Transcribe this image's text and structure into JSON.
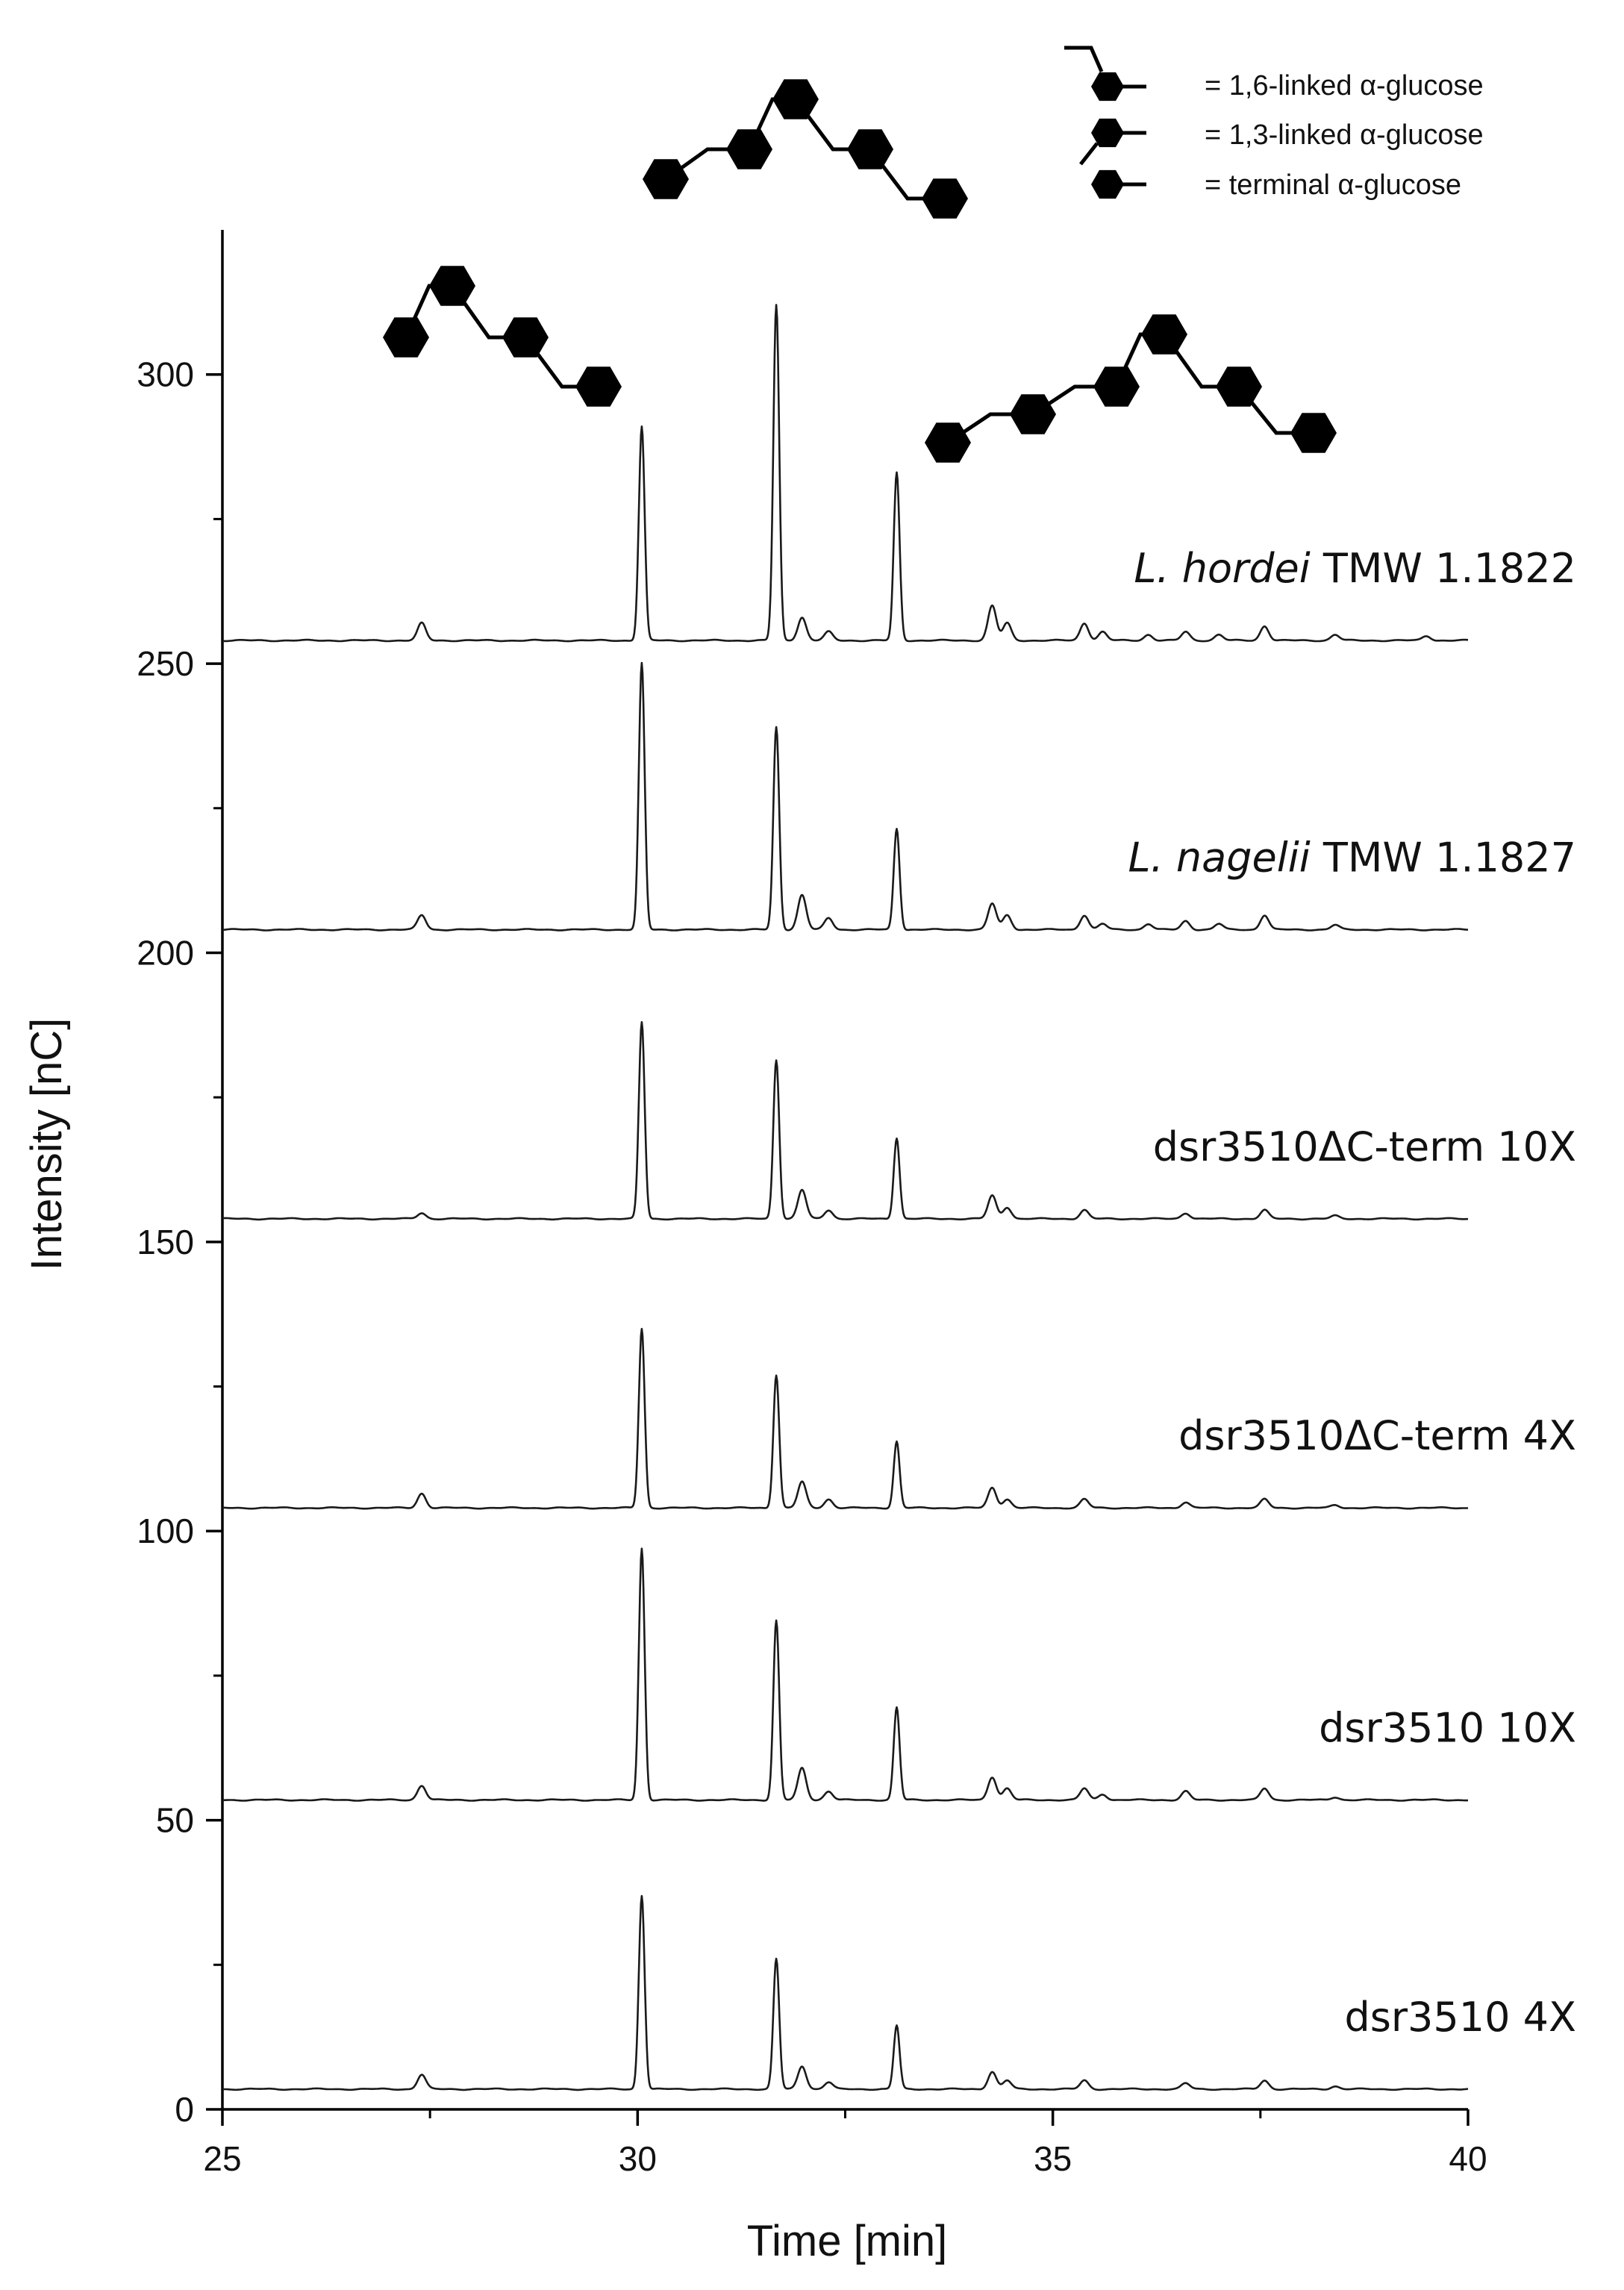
{
  "chart_data": {
    "type": "line",
    "xlabel": "Time [min]",
    "ylabel": "Intensity [nC]",
    "xlim": [
      25,
      40
    ],
    "ylim": [
      0,
      325
    ],
    "xticks": [
      25,
      30,
      35,
      40
    ],
    "yticks": [
      0,
      50,
      100,
      150,
      200,
      250,
      300
    ],
    "grid": false,
    "series": [
      {
        "name_parts": [
          {
            "text": "L. hordei",
            "italic": true
          },
          {
            "text": " TMW 1.1822",
            "italic": false
          }
        ],
        "baseline": 254,
        "peaks": [
          [
            27.4,
            3
          ],
          [
            30.05,
            37
          ],
          [
            31.67,
            58
          ],
          [
            31.98,
            4
          ],
          [
            32.3,
            1.5
          ],
          [
            33.12,
            29
          ],
          [
            34.27,
            6
          ],
          [
            34.45,
            3
          ],
          [
            35.38,
            3
          ],
          [
            35.6,
            1.5
          ],
          [
            36.15,
            1
          ],
          [
            36.6,
            1.5
          ],
          [
            37.0,
            1
          ],
          [
            37.55,
            2.5
          ],
          [
            38.4,
            1
          ],
          [
            39.5,
            0.8
          ]
        ]
      },
      {
        "name_parts": [
          {
            "text": "L. nagelii",
            "italic": true
          },
          {
            "text": " TMW 1.1827",
            "italic": false
          }
        ],
        "baseline": 204,
        "peaks": [
          [
            27.4,
            2.5
          ],
          [
            30.05,
            46
          ],
          [
            31.67,
            35
          ],
          [
            31.98,
            6
          ],
          [
            32.3,
            2
          ],
          [
            33.12,
            17.5
          ],
          [
            34.27,
            4.5
          ],
          [
            34.45,
            2.5
          ],
          [
            35.38,
            2.5
          ],
          [
            35.6,
            1
          ],
          [
            36.15,
            1
          ],
          [
            36.6,
            1.5
          ],
          [
            37.0,
            1
          ],
          [
            37.55,
            2.5
          ],
          [
            38.4,
            0.8
          ]
        ]
      },
      {
        "name_parts": [
          {
            "text": "dsr3510ΔC-term 10X",
            "italic": false
          }
        ],
        "baseline": 154,
        "peaks": [
          [
            27.4,
            1
          ],
          [
            30.05,
            34
          ],
          [
            31.67,
            27.5
          ],
          [
            31.98,
            5
          ],
          [
            32.3,
            1.5
          ],
          [
            33.12,
            14
          ],
          [
            34.27,
            4
          ],
          [
            34.45,
            2
          ],
          [
            35.38,
            1.5
          ],
          [
            36.6,
            1
          ],
          [
            37.55,
            1.5
          ],
          [
            38.4,
            0.5
          ]
        ]
      },
      {
        "name_parts": [
          {
            "text": "dsr3510ΔC-term 4X",
            "italic": false
          }
        ],
        "baseline": 104,
        "peaks": [
          [
            27.4,
            2.5
          ],
          [
            30.05,
            31
          ],
          [
            31.67,
            23
          ],
          [
            31.98,
            4.5
          ],
          [
            32.3,
            1.5
          ],
          [
            33.12,
            11.5
          ],
          [
            34.27,
            3.5
          ],
          [
            34.45,
            1.5
          ],
          [
            35.38,
            1.5
          ],
          [
            36.6,
            1
          ],
          [
            37.55,
            1.5
          ],
          [
            38.4,
            0.5
          ]
        ]
      },
      {
        "name_parts": [
          {
            "text": "dsr3510 10X",
            "italic": false
          }
        ],
        "baseline": 53.5,
        "peaks": [
          [
            27.4,
            2.5
          ],
          [
            30.05,
            43.5
          ],
          [
            31.67,
            31
          ],
          [
            31.98,
            5.5
          ],
          [
            32.3,
            1.5
          ],
          [
            33.12,
            16
          ],
          [
            34.27,
            4
          ],
          [
            34.45,
            2
          ],
          [
            35.38,
            2
          ],
          [
            35.6,
            1
          ],
          [
            36.6,
            1.5
          ],
          [
            37.55,
            2
          ],
          [
            38.4,
            0.5
          ]
        ]
      },
      {
        "name_parts": [
          {
            "text": "dsr3510 4X",
            "italic": false
          }
        ],
        "baseline": 3.5,
        "peaks": [
          [
            27.4,
            2.5
          ],
          [
            30.05,
            33.5
          ],
          [
            31.67,
            22.5
          ],
          [
            31.98,
            4
          ],
          [
            32.3,
            1.2
          ],
          [
            33.12,
            11
          ],
          [
            34.27,
            3
          ],
          [
            34.45,
            1.5
          ],
          [
            35.38,
            1.5
          ],
          [
            36.6,
            1
          ],
          [
            37.55,
            1.5
          ],
          [
            38.4,
            0.5
          ]
        ]
      }
    ],
    "legend": {
      "placement": "top-right",
      "items": [
        {
          "symbol": "1,6-linked",
          "label": "= 1,6-linked α-glucose"
        },
        {
          "symbol": "1,3-linked",
          "label": "= 1,3-linked α-glucose"
        },
        {
          "symbol": "terminal",
          "label": "= terminal α-glucose"
        }
      ]
    }
  },
  "colors": {
    "trace": "#1a1a1a",
    "axis": "#000000",
    "glyph": "#000000"
  }
}
